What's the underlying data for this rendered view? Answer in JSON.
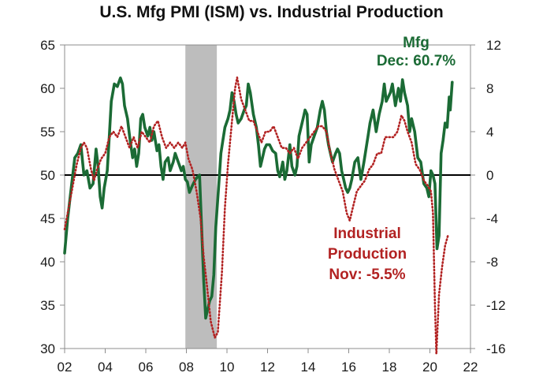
{
  "chart_data": {
    "type": "line",
    "title": "U.S. Mfg PMI (ISM) vs. Industrial Production",
    "x_axis": {
      "range": [
        2002,
        2022
      ],
      "ticks": [
        2002,
        2004,
        2006,
        2008,
        2010,
        2012,
        2014,
        2016,
        2018,
        2020,
        2022
      ],
      "tick_labels": [
        "02",
        "04",
        "06",
        "08",
        "10",
        "12",
        "14",
        "16",
        "18",
        "20",
        "22"
      ]
    },
    "y_left": {
      "range": [
        30,
        65
      ],
      "ticks": [
        30,
        35,
        40,
        45,
        50,
        55,
        60,
        65
      ]
    },
    "y_right": {
      "range": [
        -16,
        12
      ],
      "ticks": [
        -16,
        -12,
        -8,
        -4,
        0,
        4,
        8,
        12
      ]
    },
    "grid": false,
    "reference_line": {
      "axis": "y_left",
      "value": 50,
      "color": "#000000"
    },
    "shaded_regions": [
      {
        "x_start": 2007.95,
        "x_end": 2009.5,
        "color": "#bdbdbd"
      }
    ],
    "series": [
      {
        "name": "Mfg",
        "axis": "left",
        "color": "#1b6b35",
        "style": "solid",
        "points": [
          [
            2002.0,
            41
          ],
          [
            2002.15,
            45
          ],
          [
            2002.35,
            49
          ],
          [
            2002.5,
            52
          ],
          [
            2002.65,
            52.5
          ],
          [
            2002.8,
            53.5
          ],
          [
            2002.95,
            50
          ],
          [
            2003.1,
            50.5
          ],
          [
            2003.25,
            48.5
          ],
          [
            2003.4,
            49
          ],
          [
            2003.55,
            53
          ],
          [
            2003.65,
            51
          ],
          [
            2003.75,
            47.5
          ],
          [
            2003.85,
            46.2
          ],
          [
            2003.95,
            48.5
          ],
          [
            2004.1,
            50.5
          ],
          [
            2004.2,
            54.5
          ],
          [
            2004.3,
            58.5
          ],
          [
            2004.45,
            60.5
          ],
          [
            2004.6,
            60.2
          ],
          [
            2004.75,
            61.2
          ],
          [
            2004.85,
            60.5
          ],
          [
            2004.95,
            58
          ],
          [
            2005.1,
            56.5
          ],
          [
            2005.2,
            54.5
          ],
          [
            2005.35,
            52
          ],
          [
            2005.45,
            53
          ],
          [
            2005.55,
            51
          ],
          [
            2005.65,
            52.5
          ],
          [
            2005.75,
            56.5
          ],
          [
            2005.85,
            57
          ],
          [
            2005.95,
            55.5
          ],
          [
            2006.1,
            54.5
          ],
          [
            2006.2,
            55.5
          ],
          [
            2006.3,
            54
          ],
          [
            2006.4,
            55
          ],
          [
            2006.55,
            52.8
          ],
          [
            2006.65,
            53.5
          ],
          [
            2006.75,
            51
          ],
          [
            2006.85,
            49.5
          ],
          [
            2006.95,
            51.5
          ],
          [
            2007.1,
            52
          ],
          [
            2007.2,
            50.5
          ],
          [
            2007.35,
            51.5
          ],
          [
            2007.45,
            52.5
          ],
          [
            2007.6,
            51.5
          ],
          [
            2007.75,
            50.5
          ],
          [
            2007.85,
            51
          ],
          [
            2007.95,
            49.5
          ],
          [
            2008.05,
            49.2
          ],
          [
            2008.15,
            48
          ],
          [
            2008.3,
            48.8
          ],
          [
            2008.45,
            49.5
          ],
          [
            2008.55,
            49.8
          ],
          [
            2008.65,
            50
          ],
          [
            2008.75,
            44
          ],
          [
            2008.85,
            38
          ],
          [
            2008.95,
            33.5
          ],
          [
            2009.05,
            34.5
          ],
          [
            2009.15,
            35.5
          ],
          [
            2009.25,
            36
          ],
          [
            2009.35,
            38.5
          ],
          [
            2009.45,
            44
          ],
          [
            2009.6,
            49
          ],
          [
            2009.7,
            52.5
          ],
          [
            2009.8,
            54
          ],
          [
            2009.9,
            55.5
          ],
          [
            2010.05,
            56.5
          ],
          [
            2010.15,
            57.5
          ],
          [
            2010.25,
            59.5
          ],
          [
            2010.35,
            58.5
          ],
          [
            2010.45,
            57
          ],
          [
            2010.55,
            56
          ],
          [
            2010.7,
            56.5
          ],
          [
            2010.85,
            57.5
          ],
          [
            2010.95,
            58
          ],
          [
            2011.05,
            60.5
          ],
          [
            2011.15,
            59.5
          ],
          [
            2011.3,
            57
          ],
          [
            2011.45,
            55.5
          ],
          [
            2011.55,
            53.5
          ],
          [
            2011.65,
            51
          ],
          [
            2011.75,
            52
          ],
          [
            2011.85,
            53
          ],
          [
            2011.95,
            53.5
          ],
          [
            2012.1,
            53.5
          ],
          [
            2012.25,
            52.8
          ],
          [
            2012.4,
            52.5
          ],
          [
            2012.5,
            50.5
          ],
          [
            2012.6,
            49.8
          ],
          [
            2012.75,
            51.5
          ],
          [
            2012.85,
            49.5
          ],
          [
            2012.95,
            50.5
          ],
          [
            2013.1,
            53.5
          ],
          [
            2013.2,
            51
          ],
          [
            2013.35,
            50
          ],
          [
            2013.45,
            51
          ],
          [
            2013.55,
            54.5
          ],
          [
            2013.65,
            55.5
          ],
          [
            2013.75,
            56.5
          ],
          [
            2013.85,
            57.5
          ],
          [
            2013.95,
            57
          ],
          [
            2014.05,
            51.5
          ],
          [
            2014.15,
            53.5
          ],
          [
            2014.3,
            54.5
          ],
          [
            2014.45,
            55.5
          ],
          [
            2014.6,
            57.5
          ],
          [
            2014.7,
            58.5
          ],
          [
            2014.8,
            57.5
          ],
          [
            2014.9,
            55
          ],
          [
            2015.0,
            53.5
          ],
          [
            2015.1,
            52.5
          ],
          [
            2015.2,
            51.5
          ],
          [
            2015.35,
            52.5
          ],
          [
            2015.45,
            53
          ],
          [
            2015.55,
            52.5
          ],
          [
            2015.65,
            50.5
          ],
          [
            2015.75,
            49.5
          ],
          [
            2015.85,
            48.5
          ],
          [
            2015.95,
            48
          ],
          [
            2016.05,
            48.5
          ],
          [
            2016.15,
            49.5
          ],
          [
            2016.3,
            51.5
          ],
          [
            2016.45,
            52
          ],
          [
            2016.6,
            49.5
          ],
          [
            2016.75,
            51.5
          ],
          [
            2016.85,
            53
          ],
          [
            2016.95,
            54.5
          ],
          [
            2017.05,
            56
          ],
          [
            2017.2,
            57.5
          ],
          [
            2017.35,
            55
          ],
          [
            2017.5,
            57
          ],
          [
            2017.65,
            58.5
          ],
          [
            2017.75,
            60.5
          ],
          [
            2017.85,
            58.5
          ],
          [
            2017.95,
            59
          ],
          [
            2018.05,
            59.5
          ],
          [
            2018.15,
            60.5
          ],
          [
            2018.3,
            58
          ],
          [
            2018.45,
            60
          ],
          [
            2018.55,
            58.5
          ],
          [
            2018.65,
            61
          ],
          [
            2018.75,
            59.5
          ],
          [
            2018.9,
            58
          ],
          [
            2019.0,
            55
          ],
          [
            2019.1,
            56.5
          ],
          [
            2019.25,
            55
          ],
          [
            2019.4,
            52
          ],
          [
            2019.55,
            51.5
          ],
          [
            2019.7,
            49
          ],
          [
            2019.85,
            48.5
          ],
          [
            2019.95,
            47.5
          ],
          [
            2020.05,
            50.5
          ],
          [
            2020.15,
            50
          ],
          [
            2020.25,
            49
          ],
          [
            2020.35,
            41.5
          ],
          [
            2020.45,
            43
          ],
          [
            2020.55,
            52.5
          ],
          [
            2020.65,
            54
          ],
          [
            2020.75,
            56
          ],
          [
            2020.85,
            55.5
          ],
          [
            2020.95,
            59
          ],
          [
            2021.0,
            57.5
          ],
          [
            2021.1,
            60.7
          ]
        ]
      },
      {
        "name": "Industrial Production",
        "axis": "right",
        "color": "#b22222",
        "style": "dotted",
        "points": [
          [
            2002.0,
            -5
          ],
          [
            2002.2,
            -3
          ],
          [
            2002.4,
            -1
          ],
          [
            2002.6,
            1
          ],
          [
            2002.8,
            2.5
          ],
          [
            2002.95,
            3
          ],
          [
            2003.1,
            2.5
          ],
          [
            2003.3,
            0.5
          ],
          [
            2003.45,
            -0.5
          ],
          [
            2003.6,
            0.5
          ],
          [
            2003.8,
            1.5
          ],
          [
            2004.0,
            2
          ],
          [
            2004.2,
            3.5
          ],
          [
            2004.4,
            4
          ],
          [
            2004.6,
            3.5
          ],
          [
            2004.8,
            4.5
          ],
          [
            2005.0,
            3.5
          ],
          [
            2005.2,
            2.5
          ],
          [
            2005.4,
            3.5
          ],
          [
            2005.6,
            2.5
          ],
          [
            2005.8,
            4
          ],
          [
            2006.0,
            3.5
          ],
          [
            2006.2,
            3
          ],
          [
            2006.4,
            4.5
          ],
          [
            2006.6,
            5
          ],
          [
            2006.8,
            3.5
          ],
          [
            2007.0,
            2.5
          ],
          [
            2007.2,
            3
          ],
          [
            2007.4,
            2.5
          ],
          [
            2007.6,
            3
          ],
          [
            2007.8,
            2.5
          ],
          [
            2007.95,
            3
          ],
          [
            2008.1,
            1.5
          ],
          [
            2008.3,
            0.5
          ],
          [
            2008.5,
            -1.5
          ],
          [
            2008.7,
            -4
          ],
          [
            2008.85,
            -7.5
          ],
          [
            2009.0,
            -10
          ],
          [
            2009.2,
            -13.5
          ],
          [
            2009.4,
            -15
          ],
          [
            2009.55,
            -14.5
          ],
          [
            2009.75,
            -9
          ],
          [
            2009.9,
            -3
          ],
          [
            2010.05,
            1
          ],
          [
            2010.25,
            5
          ],
          [
            2010.4,
            8
          ],
          [
            2010.5,
            9
          ],
          [
            2010.7,
            7
          ],
          [
            2010.9,
            6
          ],
          [
            2011.1,
            5
          ],
          [
            2011.3,
            5
          ],
          [
            2011.5,
            4
          ],
          [
            2011.7,
            3
          ],
          [
            2011.9,
            4
          ],
          [
            2012.1,
            4
          ],
          [
            2012.3,
            4.5
          ],
          [
            2012.5,
            3.5
          ],
          [
            2012.7,
            2.5
          ],
          [
            2012.9,
            2.5
          ],
          [
            2013.1,
            2
          ],
          [
            2013.3,
            2.5
          ],
          [
            2013.5,
            1.5
          ],
          [
            2013.7,
            2.5
          ],
          [
            2013.9,
            3
          ],
          [
            2014.1,
            3.5
          ],
          [
            2014.3,
            4
          ],
          [
            2014.5,
            4.5
          ],
          [
            2014.7,
            4.5
          ],
          [
            2014.9,
            4
          ],
          [
            2015.1,
            2
          ],
          [
            2015.3,
            0.5
          ],
          [
            2015.5,
            -0.5
          ],
          [
            2015.7,
            -1.5
          ],
          [
            2015.9,
            -3.5
          ],
          [
            2016.05,
            -4.2
          ],
          [
            2016.2,
            -3
          ],
          [
            2016.4,
            -1.5
          ],
          [
            2016.6,
            -1
          ],
          [
            2016.8,
            -0.5
          ],
          [
            2017.0,
            0.5
          ],
          [
            2017.2,
            1
          ],
          [
            2017.4,
            2
          ],
          [
            2017.6,
            2
          ],
          [
            2017.8,
            3.5
          ],
          [
            2018.0,
            3.5
          ],
          [
            2018.2,
            3.5
          ],
          [
            2018.4,
            4
          ],
          [
            2018.6,
            5.5
          ],
          [
            2018.75,
            5
          ],
          [
            2018.9,
            4
          ],
          [
            2019.1,
            3
          ],
          [
            2019.3,
            1
          ],
          [
            2019.5,
            0.5
          ],
          [
            2019.7,
            -0.5
          ],
          [
            2019.9,
            -1
          ],
          [
            2020.05,
            -1.5
          ],
          [
            2020.15,
            -3.5
          ],
          [
            2020.25,
            -12
          ],
          [
            2020.32,
            -16.5
          ],
          [
            2020.45,
            -11
          ],
          [
            2020.6,
            -8.5
          ],
          [
            2020.75,
            -6.5
          ],
          [
            2020.9,
            -5.5
          ]
        ]
      }
    ],
    "annotations": [
      {
        "key": "mfg",
        "lines": [
          "Mfg",
          "Dec: 60.7%"
        ],
        "color": "#1b6b35"
      },
      {
        "key": "ip",
        "lines": [
          "Industrial",
          "Production",
          "Nov: -5.5%"
        ],
        "color": "#b22222"
      }
    ]
  }
}
